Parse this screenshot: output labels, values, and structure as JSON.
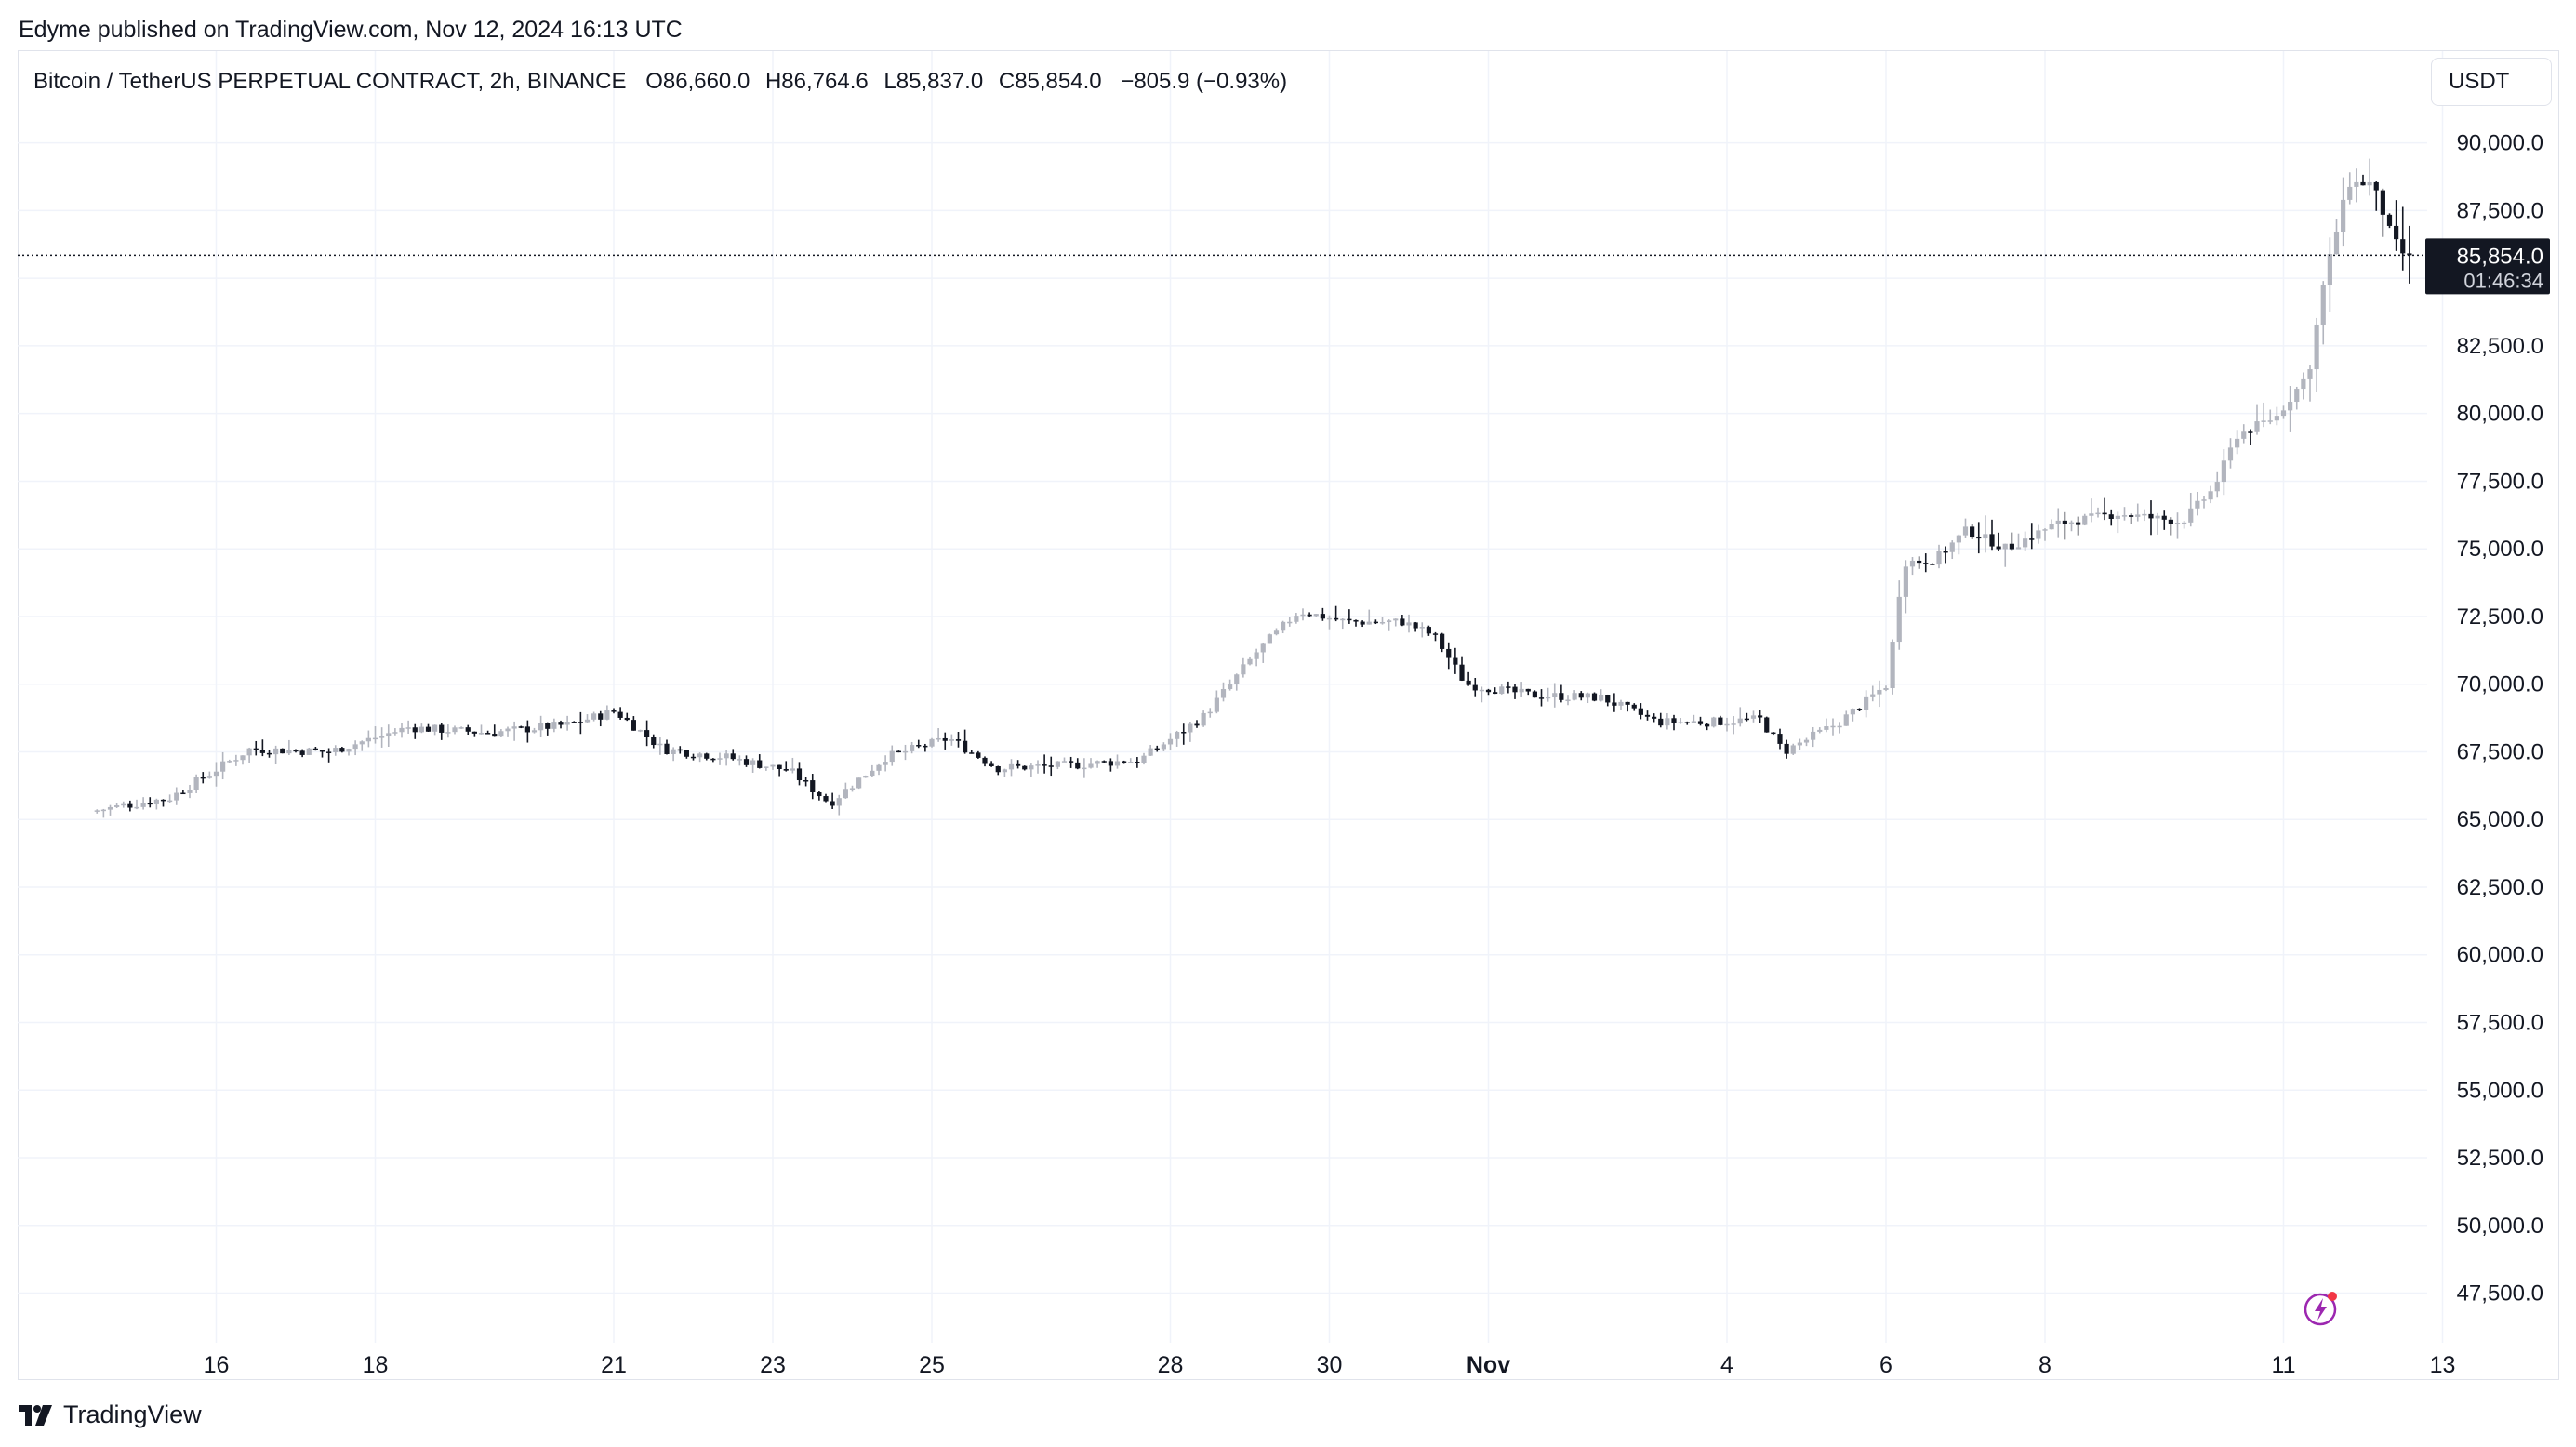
{
  "publisher_line": "Edyme published on TradingView.com, Nov 12, 2024 16:13 UTC",
  "header": {
    "symbol": "Bitcoin / TetherUS PERPETUAL CONTRACT, 2h, BINANCE",
    "open": "O86,660.0",
    "high": "H86,764.6",
    "low": "L85,837.0",
    "close": "C85,854.0",
    "change": "−805.9 (−0.93%)"
  },
  "currency": "USDT",
  "footer_logo": "TradingView",
  "last_price_label": "85,854.0",
  "countdown_label": "01:46:34",
  "colors": {
    "up": "#b2b5be",
    "down": "#131722",
    "grid": "#f0f3fa",
    "text": "#131722"
  },
  "chart_data": {
    "type": "candlestick",
    "ylim": [
      45800,
      91500
    ],
    "y_ticks": [
      "90,000.0",
      "87,500.0",
      "85,000.0",
      "82,500.0",
      "80,000.0",
      "77,500.0",
      "75,000.0",
      "72,500.0",
      "70,000.0",
      "67,500.0",
      "65,000.0",
      "62,500.0",
      "60,000.0",
      "57,500.0",
      "55,000.0",
      "52,500.0",
      "50,000.0",
      "47,500.0"
    ],
    "x_ticks": [
      {
        "label": "16",
        "day": 1
      },
      {
        "label": "18",
        "day": 3
      },
      {
        "label": "21",
        "day": 6
      },
      {
        "label": "23",
        "day": 8
      },
      {
        "label": "25",
        "day": 10
      },
      {
        "label": "28",
        "day": 13
      },
      {
        "label": "30",
        "day": 15
      },
      {
        "label": "Nov",
        "day": 17
      },
      {
        "label": "4",
        "day": 20
      },
      {
        "label": "6",
        "day": 22
      },
      {
        "label": "8",
        "day": 24
      },
      {
        "label": "11",
        "day": 27
      },
      {
        "label": "13",
        "day": 29
      }
    ],
    "last_price": 85854,
    "anchors": [
      {
        "day": -0.5,
        "price": 65300
      },
      {
        "day": 0.5,
        "price": 65800
      },
      {
        "day": 1.5,
        "price": 67600
      },
      {
        "day": 2.5,
        "price": 67500
      },
      {
        "day": 3.5,
        "price": 68400
      },
      {
        "day": 4.5,
        "price": 68200
      },
      {
        "day": 5.5,
        "price": 68500
      },
      {
        "day": 6.1,
        "price": 69000
      },
      {
        "day": 6.7,
        "price": 67600
      },
      {
        "day": 7.5,
        "price": 67300
      },
      {
        "day": 8.3,
        "price": 66800
      },
      {
        "day": 8.8,
        "price": 65600
      },
      {
        "day": 9.5,
        "price": 67300
      },
      {
        "day": 10.3,
        "price": 68000
      },
      {
        "day": 10.9,
        "price": 66900
      },
      {
        "day": 11.8,
        "price": 67000
      },
      {
        "day": 12.7,
        "price": 67200
      },
      {
        "day": 13.5,
        "price": 68800
      },
      {
        "day": 14.2,
        "price": 71300
      },
      {
        "day": 14.7,
        "price": 72700
      },
      {
        "day": 15.3,
        "price": 72300
      },
      {
        "day": 16.0,
        "price": 72300
      },
      {
        "day": 16.4,
        "price": 71800
      },
      {
        "day": 16.8,
        "price": 70000
      },
      {
        "day": 17.6,
        "price": 69600
      },
      {
        "day": 18.5,
        "price": 69500
      },
      {
        "day": 19.2,
        "price": 68600
      },
      {
        "day": 19.9,
        "price": 68600
      },
      {
        "day": 20.5,
        "price": 68700
      },
      {
        "day": 20.8,
        "price": 67500
      },
      {
        "day": 21.5,
        "price": 68600
      },
      {
        "day": 22.1,
        "price": 70000
      },
      {
        "day": 22.3,
        "price": 74500
      },
      {
        "day": 22.7,
        "price": 74600
      },
      {
        "day": 23.1,
        "price": 75700
      },
      {
        "day": 23.6,
        "price": 75000
      },
      {
        "day": 24.2,
        "price": 75900
      },
      {
        "day": 25.0,
        "price": 76300
      },
      {
        "day": 25.8,
        "price": 76000
      },
      {
        "day": 26.2,
        "price": 77200
      },
      {
        "day": 26.5,
        "price": 79200
      },
      {
        "day": 27.0,
        "price": 79900
      },
      {
        "day": 27.4,
        "price": 81500
      },
      {
        "day": 27.6,
        "price": 85000
      },
      {
        "day": 27.9,
        "price": 88500
      },
      {
        "day": 28.2,
        "price": 88500
      },
      {
        "day": 28.45,
        "price": 86500
      },
      {
        "day": 28.6,
        "price": 85850
      }
    ]
  }
}
